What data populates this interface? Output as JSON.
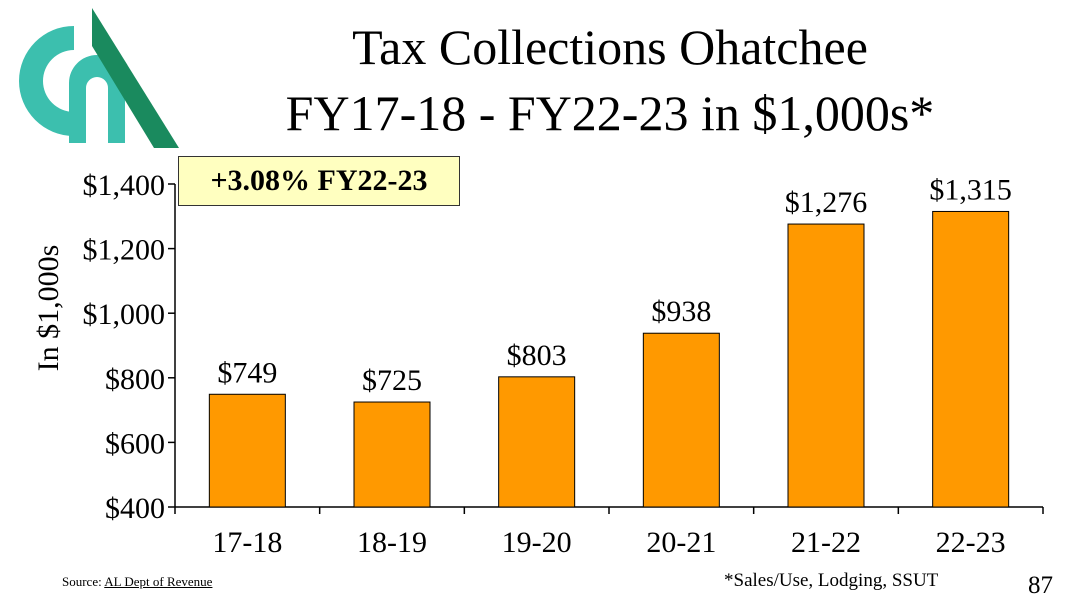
{
  "slide": {
    "title_line1": "Tax Collections Ohatchee",
    "title_line2": "FY17-18 - FY22-23 in $1,000s*",
    "badge": "+3.08% FY22-23",
    "source_prefix": "Source: ",
    "source_link": "AL Dept of Revenue",
    "footnote": "*Sales/Use, Lodging, SSUT",
    "page_number": "87"
  },
  "colors": {
    "bar": "#ff9900",
    "logo_teal": "#3cbfae",
    "logo_green": "#1a8a5e"
  },
  "chart_data": {
    "type": "bar",
    "categories": [
      "17-18",
      "18-19",
      "19-20",
      "20-21",
      "21-22",
      "22-23"
    ],
    "values": [
      749,
      725,
      803,
      938,
      1276,
      1315
    ],
    "value_labels": [
      "$749",
      "$725",
      "$803",
      "$938",
      "$1,276",
      "$1,315"
    ],
    "ylabel": "In $1,000s",
    "ylim": [
      400,
      1400
    ],
    "yticks": [
      400,
      600,
      800,
      1000,
      1200,
      1400
    ],
    "ytick_labels": [
      "$400",
      "$600",
      "$800",
      "$1,000",
      "$1,200",
      "$1,400"
    ],
    "grid": false,
    "legend": "none"
  }
}
